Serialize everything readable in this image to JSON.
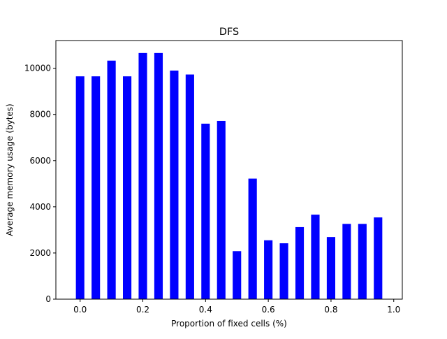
{
  "chart_data": {
    "type": "bar",
    "title": "DFS",
    "xlabel": "Proportion of fixed cells (%)",
    "ylabel": "Average memory usage (bytes)",
    "x": [
      0.0,
      0.05,
      0.1,
      0.15,
      0.2,
      0.25,
      0.3,
      0.35,
      0.4,
      0.45,
      0.5,
      0.55,
      0.6,
      0.65,
      0.7,
      0.75,
      0.8,
      0.85,
      0.9,
      0.95
    ],
    "values": [
      9650,
      9650,
      10330,
      9650,
      10660,
      10660,
      9900,
      9730,
      7600,
      7720,
      2080,
      5220,
      2550,
      2420,
      3120,
      3660,
      2690,
      3260,
      3260,
      3540
    ],
    "bar_width": 0.027,
    "xlim": [
      -0.0773,
      1.0273
    ],
    "ylim": [
      0,
      11200
    ],
    "xticks": [
      0.0,
      0.2,
      0.4,
      0.6,
      0.8,
      1.0
    ],
    "xtick_labels": [
      "0.0",
      "0.2",
      "0.4",
      "0.6",
      "0.8",
      "1.0"
    ],
    "yticks": [
      0,
      2000,
      4000,
      6000,
      8000,
      10000
    ],
    "ytick_labels": [
      "0",
      "2000",
      "4000",
      "6000",
      "8000",
      "10000"
    ],
    "bar_color": "#0000ff",
    "grid": false,
    "legend": "none"
  }
}
